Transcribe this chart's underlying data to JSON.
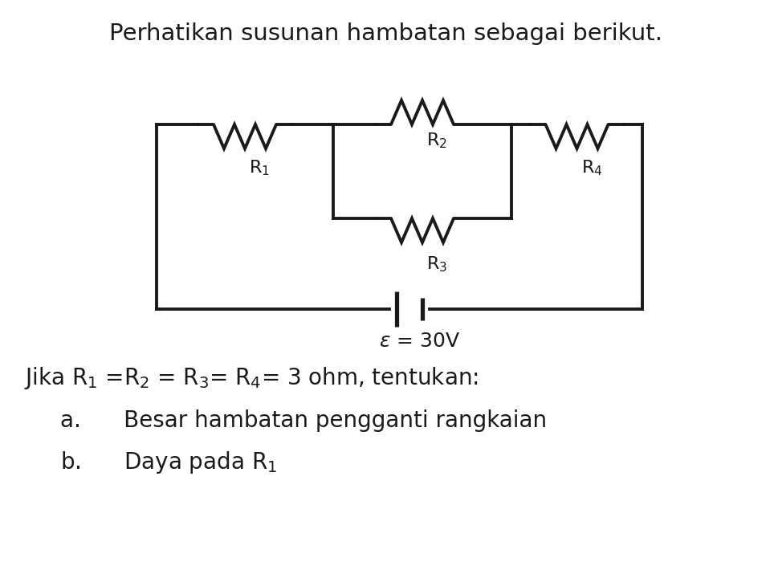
{
  "title": "Perhatikan susunan hambatan sebagai berikut.",
  "background_color": "#ffffff",
  "line_color": "#1a1a1a",
  "line_width": 2.8,
  "text_color": "#1a1a1a",
  "emf_label": "ε = 30V",
  "question_line1": "Jika R",
  "answer_a": "a.    Besar hambatan pengganti rangkaian",
  "answer_b": "b.    Daya pada R"
}
